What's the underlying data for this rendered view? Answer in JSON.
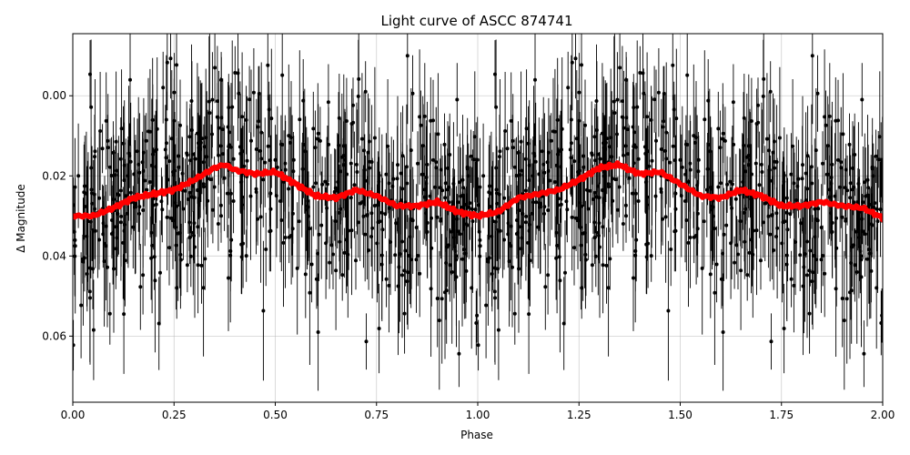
{
  "chart_data": {
    "type": "scatter",
    "title": "Light curve of ASCC 874741",
    "xlabel": "Phase",
    "ylabel": "Δ Magnitude",
    "xlim": [
      0.0,
      2.0
    ],
    "ylim": [
      0.0765,
      -0.0155
    ],
    "y_inverted": true,
    "grid": true,
    "x_ticks": [
      "0.00",
      "0.25",
      "0.50",
      "0.75",
      "1.00",
      "1.25",
      "1.50",
      "1.75",
      "2.00"
    ],
    "y_ticks": [
      "0.00",
      "0.02",
      "0.04",
      "0.06"
    ],
    "observations": {
      "marker_color": "#000000",
      "description_note": "dense black points with vertical error bars spanning the full y range",
      "approx_count_per_phase_unit": 600,
      "typical_errorbar": 0.012
    },
    "series": [
      {
        "color": "#ff0000",
        "x": [
          0.0,
          0.05,
          0.1,
          0.15,
          0.2,
          0.25,
          0.3,
          0.35,
          0.375,
          0.4,
          0.45,
          0.5,
          0.55,
          0.6,
          0.65,
          0.7,
          0.75,
          0.8,
          0.85,
          0.9,
          0.95,
          1.0,
          1.05,
          1.1,
          1.15,
          1.2,
          1.25,
          1.3,
          1.35,
          1.375,
          1.4,
          1.45,
          1.5,
          1.55,
          1.6,
          1.65,
          1.7,
          1.75,
          1.8,
          1.85,
          1.9,
          1.95,
          2.0
        ],
        "y": [
          0.03,
          0.03,
          0.028,
          0.0255,
          0.0245,
          0.0235,
          0.021,
          0.018,
          0.0172,
          0.0185,
          0.0195,
          0.019,
          0.022,
          0.025,
          0.0255,
          0.0235,
          0.025,
          0.0275,
          0.0275,
          0.0265,
          0.029,
          0.03,
          0.029,
          0.0255,
          0.0245,
          0.0235,
          0.021,
          0.018,
          0.0172,
          0.0185,
          0.0195,
          0.019,
          0.022,
          0.025,
          0.0255,
          0.0235,
          0.025,
          0.0275,
          0.0275,
          0.0265,
          0.0275,
          0.028,
          0.0305
        ]
      }
    ]
  }
}
